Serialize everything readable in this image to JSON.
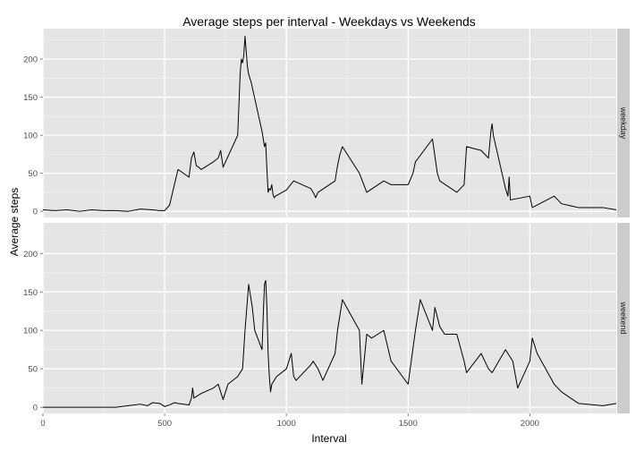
{
  "chart_data": {
    "type": "line",
    "title": "Average steps per interval -  Weekdays vs Weekends",
    "xlabel": "Interval",
    "ylabel": "Average steps",
    "xlim": [
      0,
      2355
    ],
    "ylim": [
      -8,
      240
    ],
    "x_ticks": [
      0,
      500,
      1000,
      1500,
      2000
    ],
    "y_ticks": [
      0,
      50,
      100,
      150,
      200
    ],
    "grid": true,
    "facet_position": "right",
    "colors": {
      "panel_bg": "#e5e5e5",
      "grid_major": "#ffffff",
      "grid_minor": "#f2f2f2",
      "strip_bg": "#cccccc",
      "line": "#000000"
    },
    "panels": [
      {
        "name": "weekday",
        "x": [
          0,
          50,
          100,
          150,
          200,
          250,
          300,
          350,
          400,
          450,
          480,
          500,
          520,
          540,
          555,
          600,
          610,
          620,
          630,
          640,
          650,
          700,
          720,
          730,
          740,
          800,
          810,
          815,
          820,
          825,
          830,
          835,
          840,
          845,
          850,
          855,
          900,
          905,
          910,
          915,
          920,
          925,
          930,
          935,
          940,
          945,
          950,
          955,
          1000,
          1030,
          1100,
          1115,
          1120,
          1130,
          1200,
          1210,
          1220,
          1230,
          1300,
          1330,
          1400,
          1430,
          1500,
          1520,
          1530,
          1600,
          1620,
          1630,
          1700,
          1730,
          1740,
          1800,
          1830,
          1840,
          1845,
          1850,
          1900,
          1910,
          1915,
          1920,
          2000,
          2010,
          2100,
          2130,
          2200,
          2300,
          2355
        ],
        "y": [
          2,
          1,
          2,
          0,
          2,
          1,
          1,
          0,
          3,
          2,
          1,
          1,
          8,
          35,
          55,
          45,
          70,
          78,
          60,
          58,
          55,
          65,
          70,
          80,
          58,
          100,
          180,
          200,
          195,
          205,
          230,
          210,
          190,
          180,
          175,
          170,
          105,
          95,
          85,
          90,
          55,
          25,
          30,
          28,
          35,
          22,
          18,
          20,
          28,
          40,
          30,
          22,
          18,
          25,
          40,
          60,
          75,
          85,
          50,
          25,
          40,
          35,
          35,
          50,
          65,
          95,
          50,
          40,
          25,
          35,
          85,
          80,
          70,
          105,
          115,
          100,
          30,
          20,
          45,
          15,
          20,
          5,
          20,
          10,
          5,
          5,
          2
        ]
      },
      {
        "name": "weekend",
        "x": [
          0,
          100,
          200,
          300,
          350,
          400,
          430,
          450,
          480,
          500,
          520,
          540,
          555,
          600,
          610,
          615,
          620,
          650,
          700,
          720,
          730,
          740,
          760,
          800,
          820,
          830,
          840,
          845,
          850,
          860,
          870,
          900,
          905,
          910,
          915,
          920,
          925,
          930,
          935,
          940,
          950,
          960,
          1000,
          1010,
          1020,
          1030,
          1040,
          1100,
          1110,
          1130,
          1150,
          1200,
          1210,
          1230,
          1300,
          1310,
          1330,
          1350,
          1400,
          1430,
          1500,
          1530,
          1550,
          1600,
          1610,
          1630,
          1650,
          1700,
          1730,
          1740,
          1800,
          1830,
          1845,
          1900,
          1930,
          1950,
          2000,
          2010,
          2030,
          2100,
          2130,
          2200,
          2300,
          2355
        ],
        "y": [
          0,
          0,
          0,
          0,
          2,
          4,
          2,
          6,
          5,
          1,
          3,
          6,
          5,
          3,
          12,
          25,
          12,
          18,
          25,
          30,
          20,
          10,
          30,
          40,
          50,
          100,
          140,
          160,
          150,
          130,
          100,
          75,
          120,
          160,
          165,
          130,
          70,
          40,
          20,
          30,
          35,
          40,
          50,
          60,
          70,
          40,
          35,
          55,
          60,
          50,
          35,
          70,
          100,
          140,
          100,
          30,
          95,
          90,
          100,
          60,
          30,
          100,
          140,
          100,
          130,
          105,
          95,
          95,
          60,
          45,
          70,
          50,
          45,
          75,
          60,
          25,
          60,
          90,
          70,
          30,
          20,
          5,
          2,
          5
        ]
      }
    ]
  }
}
